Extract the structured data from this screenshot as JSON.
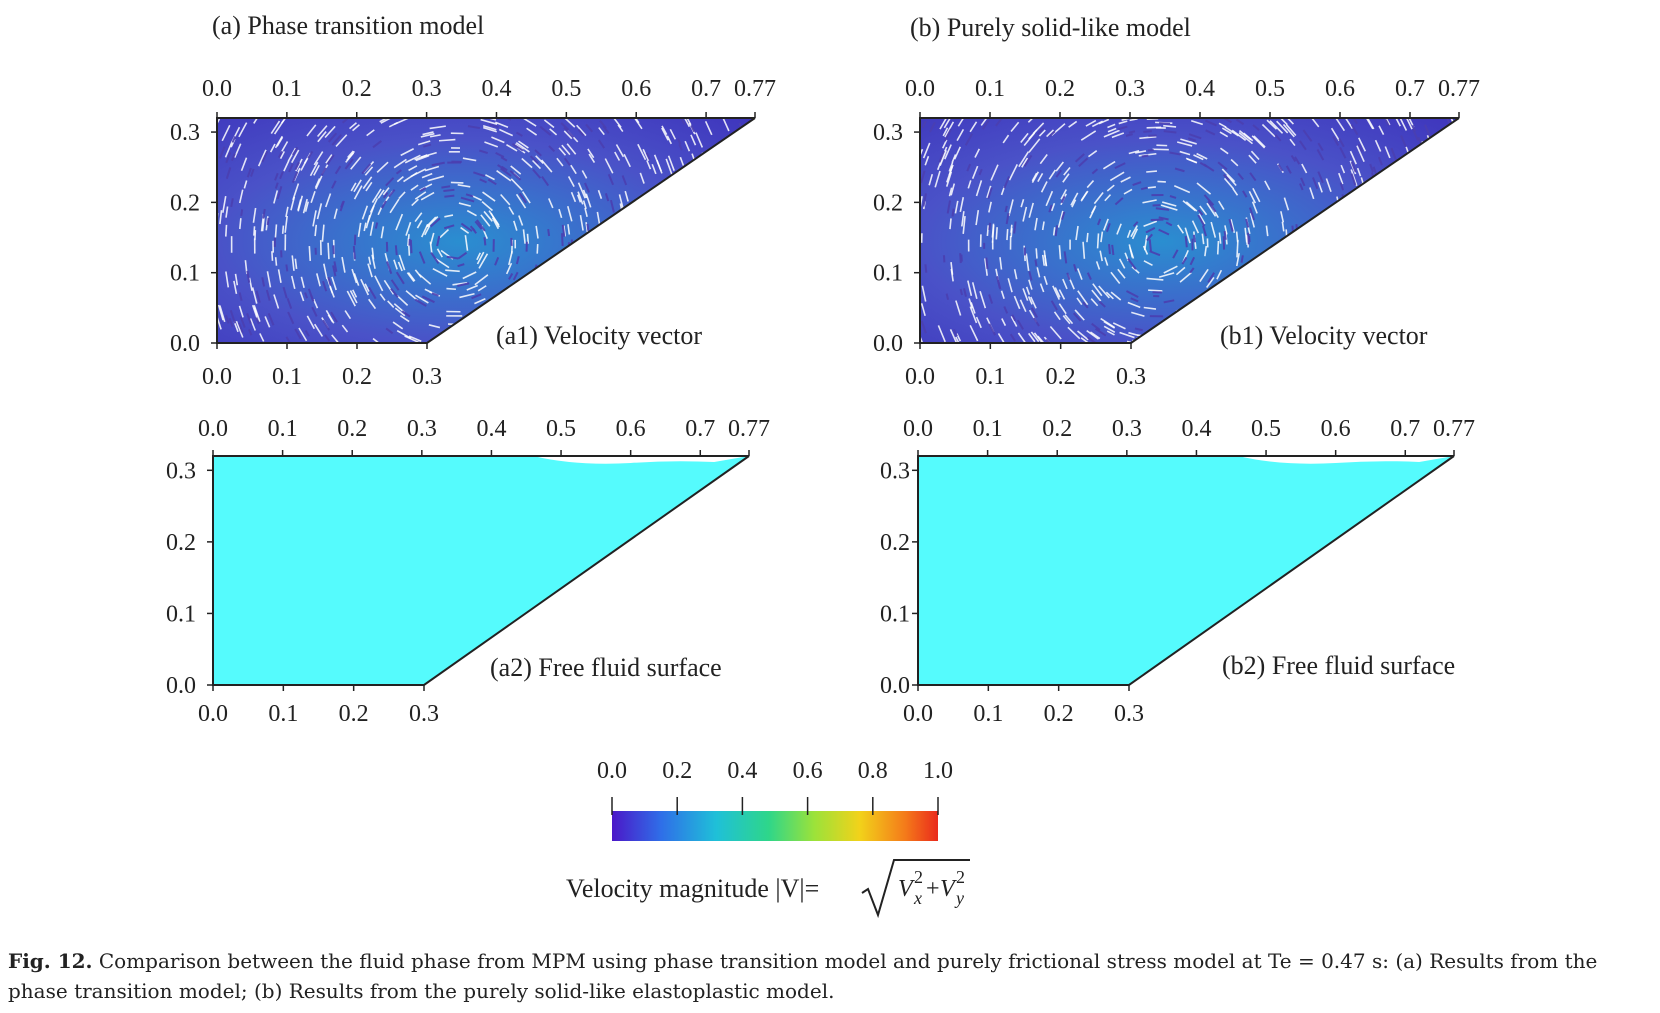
{
  "figure": {
    "panel_a_title": "(a) Phase transition model",
    "panel_b_title": "(b) Purely solid-like model",
    "top_x_ticks": [
      "0.0",
      "0.1",
      "0.2",
      "0.3",
      "0.4",
      "0.5",
      "0.6",
      "0.7",
      "0.77"
    ],
    "bottom_x_ticks": [
      "0.0",
      "0.1",
      "0.2",
      "0.3"
    ],
    "y_ticks": [
      "0.0",
      "0.1",
      "0.2",
      "0.3"
    ],
    "plots": [
      {
        "label": "(a1) Velocity vector",
        "kind": "vector"
      },
      {
        "label": "(b1) Velocity vector",
        "kind": "vector"
      },
      {
        "label": "(a2) Free fluid surface",
        "kind": "fill"
      },
      {
        "label": "(b2) Free fluid surface",
        "kind": "fill"
      }
    ],
    "colorbar": {
      "ticks": [
        "0.0",
        "0.2",
        "0.4",
        "0.6",
        "0.8",
        "1.0"
      ],
      "label_prefix": "Velocity magnitude |V|=",
      "label_formula": "√(Vx²+Vy²)",
      "colors": [
        "#4b18c8",
        "#2f6ee8",
        "#1fc0d8",
        "#2ed68a",
        "#9be23a",
        "#f2d21a",
        "#f47a1a",
        "#ea2a1c"
      ]
    },
    "fluid_color": "#55fbfd",
    "vector_color": "#4a3fb0"
  },
  "caption": {
    "label": "Fig. 12.",
    "text": "Comparison between the fluid phase from MPM using phase transition model and purely frictional stress model at Te = 0.47 s: (a) Results from the phase transition model; (b) Results from the purely solid-like elastoplastic model."
  }
}
